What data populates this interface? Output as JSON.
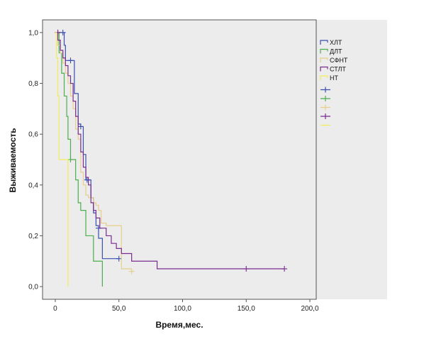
{
  "chart_data": {
    "type": "line",
    "subtype": "kaplan-meier",
    "title": "",
    "xlabel": "Время,мес.",
    "ylabel": "Выживаемость",
    "xlim": [
      -10,
      205
    ],
    "ylim": [
      -0.05,
      1.05
    ],
    "xticks": [
      0,
      50,
      100,
      150,
      200
    ],
    "xtick_labels": [
      "0",
      "50,0",
      "100,0",
      "150,0",
      "200,0"
    ],
    "yticks": [
      0,
      0.2,
      0.4,
      0.6,
      0.8,
      1.0
    ],
    "ytick_labels": [
      "0,0",
      "0,2",
      "0,4",
      "0,6",
      "0,8",
      "1,0"
    ],
    "grid": false,
    "legend_position": "right",
    "series": [
      {
        "name": "ХЛТ",
        "color": "#3a4fb0",
        "x": [
          0,
          2,
          4,
          6,
          7,
          8,
          10,
          12,
          15,
          18,
          20,
          22,
          24,
          26,
          28,
          30,
          32,
          34,
          37,
          50
        ],
        "y": [
          1.0,
          1.0,
          1.0,
          1.0,
          0.95,
          0.89,
          0.89,
          0.89,
          0.76,
          0.64,
          0.63,
          0.52,
          0.42,
          0.42,
          0.35,
          0.29,
          0.24,
          0.19,
          0.11,
          0.11
        ],
        "censored_x": [
          2,
          6,
          12,
          20,
          25,
          34,
          50
        ],
        "censored_y": [
          1.0,
          1.0,
          0.89,
          0.63,
          0.42,
          0.23,
          0.11
        ]
      },
      {
        "name": "ДЛТ",
        "color": "#4cae4c",
        "x": [
          0,
          3,
          5,
          7,
          9,
          10,
          12,
          14,
          16,
          18,
          20,
          24,
          28,
          30,
          36,
          37
        ],
        "y": [
          1.0,
          0.92,
          0.84,
          0.75,
          0.67,
          0.58,
          0.5,
          0.5,
          0.42,
          0.33,
          0.3,
          0.2,
          0.2,
          0.1,
          0.1,
          0.0
        ],
        "censored_x": [
          12
        ],
        "censored_y": [
          0.5
        ]
      },
      {
        "name": "СФНТ",
        "color": "#e6cf8a",
        "x": [
          0,
          2,
          4,
          6,
          8,
          10,
          12,
          14,
          16,
          18,
          20,
          22,
          24,
          26,
          30,
          32,
          34,
          36,
          40,
          48,
          52,
          60
        ],
        "y": [
          1.0,
          0.95,
          0.92,
          0.88,
          0.84,
          0.8,
          0.75,
          0.7,
          0.62,
          0.58,
          0.45,
          0.4,
          0.36,
          0.35,
          0.33,
          0.32,
          0.3,
          0.25,
          0.24,
          0.24,
          0.07,
          0.07
        ],
        "censored_x": [
          60
        ],
        "censored_y": [
          0.06
        ]
      },
      {
        "name": "СТЛТ",
        "color": "#7a2c8f",
        "x": [
          0,
          2,
          4,
          6,
          8,
          10,
          12,
          14,
          16,
          18,
          20,
          22,
          24,
          26,
          28,
          30,
          32,
          35,
          38,
          40,
          44,
          48,
          52,
          55,
          60,
          65,
          70,
          80,
          100,
          150,
          180
        ],
        "y": [
          1.0,
          0.97,
          0.93,
          0.9,
          0.87,
          0.83,
          0.8,
          0.73,
          0.67,
          0.6,
          0.53,
          0.47,
          0.43,
          0.4,
          0.33,
          0.3,
          0.27,
          0.23,
          0.23,
          0.2,
          0.17,
          0.15,
          0.13,
          0.13,
          0.1,
          0.1,
          0.1,
          0.07,
          0.07,
          0.07,
          0.07
        ],
        "censored_x": [
          2,
          150,
          180
        ],
        "censored_y": [
          1.0,
          0.07,
          0.07
        ]
      },
      {
        "name": "НТ",
        "color": "#f2ec59",
        "x": [
          0,
          1,
          2,
          3,
          5,
          6,
          8,
          10,
          10
        ],
        "y": [
          1.0,
          0.9,
          0.75,
          0.5,
          0.5,
          0.5,
          0.5,
          0.5,
          0.0
        ],
        "censored_x": [],
        "censored_y": []
      }
    ]
  }
}
